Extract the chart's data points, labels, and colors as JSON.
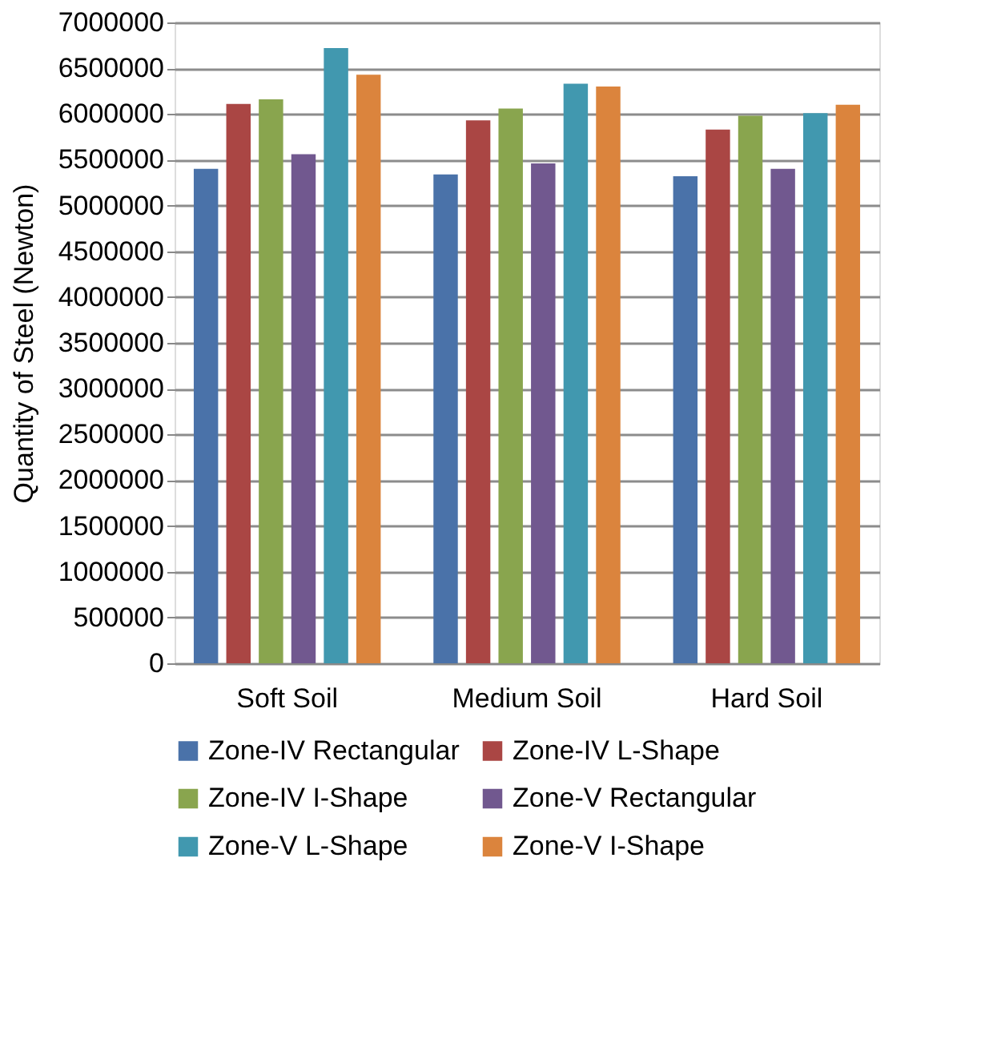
{
  "chart_data": {
    "type": "bar",
    "ylabel": "Quantity of Steel (Newton)",
    "categories": [
      "Soft Soil",
      "Medium Soil",
      "Hard Soil"
    ],
    "series": [
      {
        "name": "Zone-IV Rectangular",
        "color": "#4a72a9",
        "values": [
          5400000,
          5340000,
          5320000
        ]
      },
      {
        "name": "Zone-IV L-Shape",
        "color": "#aa4644",
        "values": [
          6110000,
          5930000,
          5830000
        ]
      },
      {
        "name": "Zone-IV I-Shape",
        "color": "#89a54e",
        "values": [
          6160000,
          6060000,
          5980000
        ]
      },
      {
        "name": "Zone-V Rectangular",
        "color": "#71588f",
        "values": [
          5560000,
          5460000,
          5400000
        ]
      },
      {
        "name": "Zone-V L-Shape",
        "color": "#4198af",
        "values": [
          6720000,
          6330000,
          6010000
        ]
      },
      {
        "name": "Zone-V I-Shape",
        "color": "#db843d",
        "values": [
          6430000,
          6300000,
          6100000
        ]
      }
    ],
    "ylim": [
      0,
      7000000
    ],
    "yticks": [
      0,
      500000,
      1000000,
      1500000,
      2000000,
      2500000,
      3000000,
      3500000,
      4000000,
      4500000,
      5000000,
      5500000,
      6000000,
      6500000,
      7000000
    ],
    "grid": "y",
    "legend": "bottom"
  }
}
